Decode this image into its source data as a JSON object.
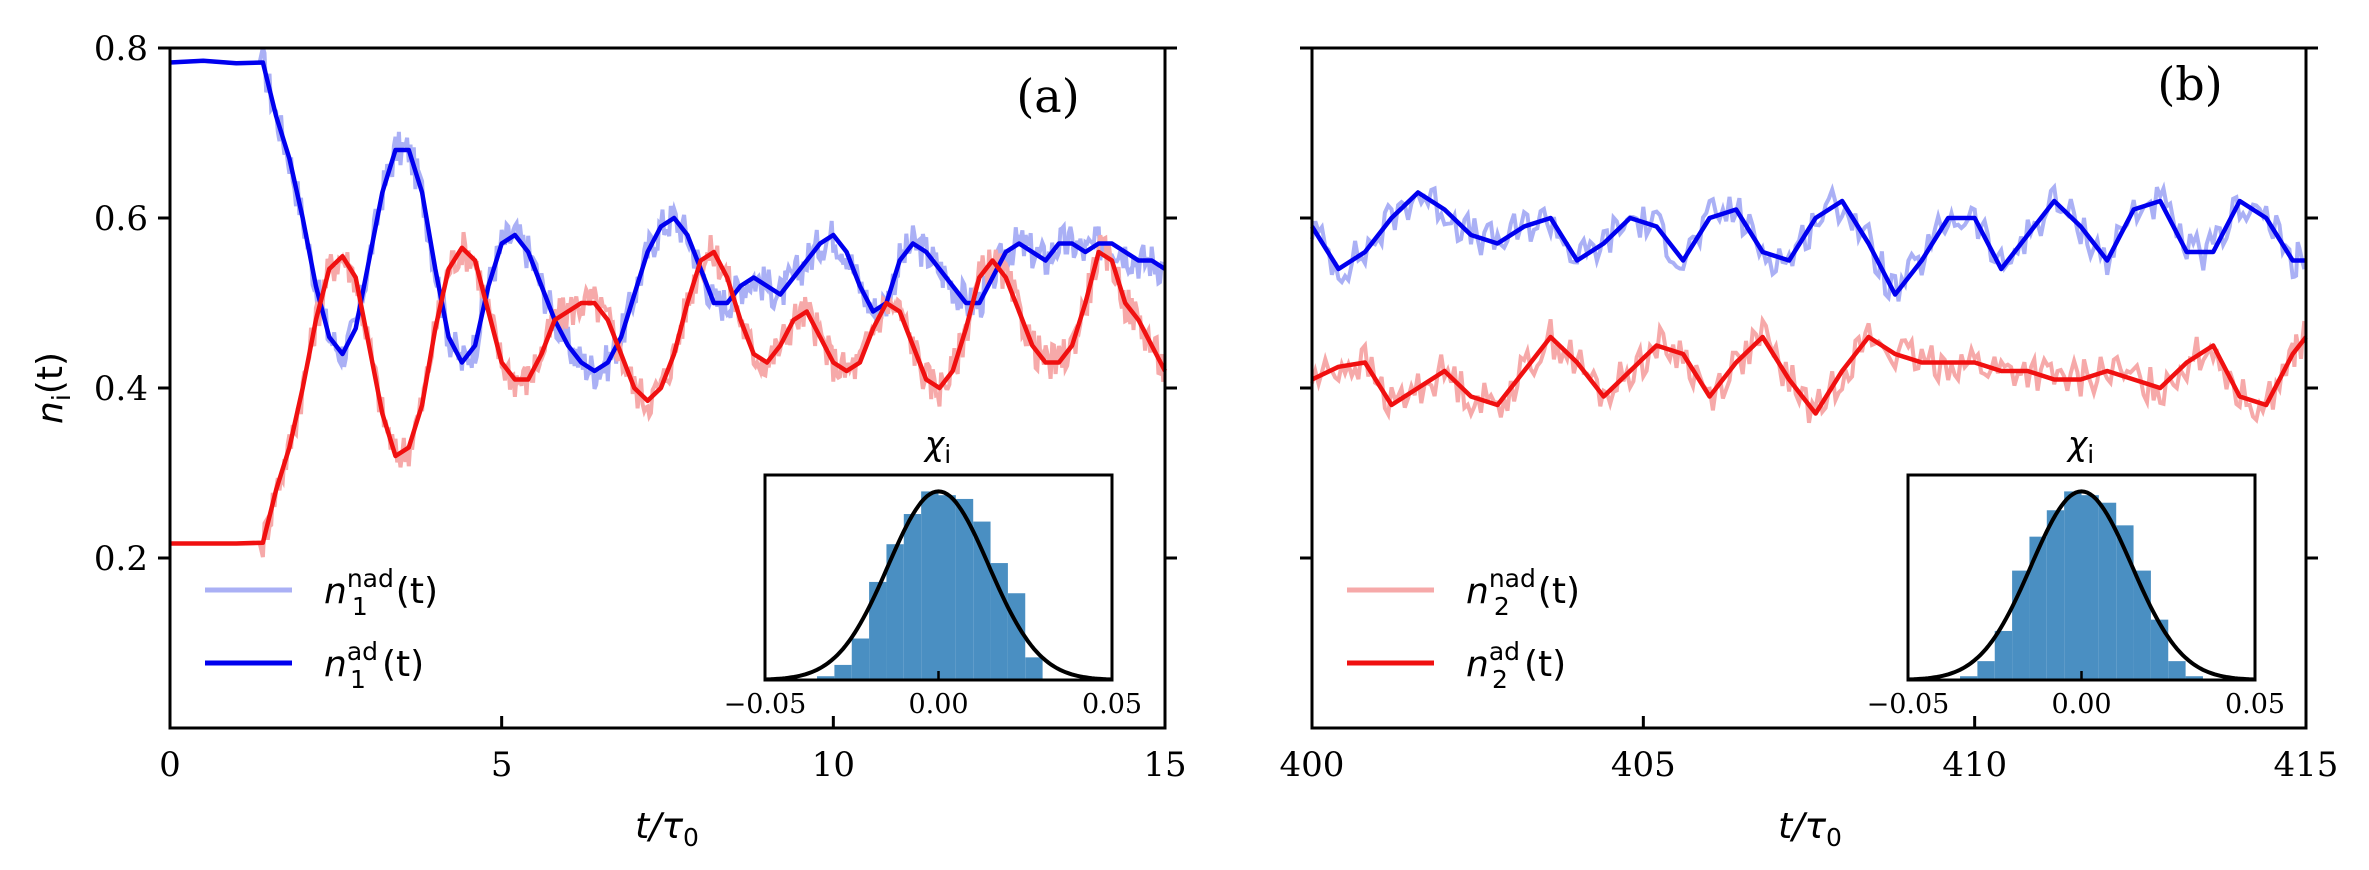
{
  "colors": {
    "blue_ad": "#0000ee",
    "blue_nad": "#aab0f5",
    "red_ad": "#f01010",
    "red_nad": "#f6a9a9",
    "hist": "#4a8fc2",
    "gauss": "#000000"
  },
  "chart_data": [
    {
      "type": "line",
      "panel_label": "(a)",
      "xlabel_main": "t/τ",
      "xlabel_sub": "0",
      "ylabel": "n",
      "ylabel_sub": "i",
      "ylabel_arg": "(t)",
      "xlim": [
        0,
        15
      ],
      "ylim": [
        0,
        0.8
      ],
      "xticks": [
        0,
        5,
        10,
        15
      ],
      "xtick_labels": [
        "0",
        "5",
        "10",
        "15"
      ],
      "yticks": [
        0.2,
        0.4,
        0.6,
        0.8
      ],
      "ytick_labels": [
        "0.2",
        "0.4",
        "0.6",
        "0.8"
      ],
      "legend": [
        {
          "base": "n",
          "sub": "1",
          "sup": "nad",
          "arg": "(t)",
          "color_key": "blue_nad"
        },
        {
          "base": "n",
          "sub": "1",
          "sup": "ad",
          "arg": "(t)",
          "color_key": "blue_ad"
        }
      ],
      "series": [
        {
          "color_key": "blue_ad",
          "x": [
            0,
            0.5,
            1.0,
            1.4,
            1.6,
            1.8,
            2.0,
            2.2,
            2.4,
            2.6,
            2.8,
            3.0,
            3.2,
            3.4,
            3.6,
            3.8,
            4.0,
            4.2,
            4.4,
            4.6,
            4.8,
            5.0,
            5.2,
            5.4,
            5.6,
            5.8,
            6.0,
            6.2,
            6.4,
            6.6,
            6.8,
            7.0,
            7.2,
            7.4,
            7.6,
            7.8,
            8.0,
            8.2,
            8.4,
            8.6,
            8.8,
            9.0,
            9.2,
            9.4,
            9.6,
            9.8,
            10.0,
            10.2,
            10.4,
            10.6,
            10.8,
            11.0,
            11.2,
            11.4,
            11.6,
            11.8,
            12.0,
            12.2,
            12.4,
            12.6,
            12.8,
            13.0,
            13.2,
            13.4,
            13.6,
            13.8,
            14.0,
            14.2,
            14.4,
            14.6,
            14.8,
            15.0
          ],
          "y": [
            0.783,
            0.785,
            0.782,
            0.783,
            0.72,
            0.67,
            0.6,
            0.52,
            0.46,
            0.44,
            0.47,
            0.55,
            0.63,
            0.68,
            0.68,
            0.63,
            0.54,
            0.46,
            0.43,
            0.45,
            0.52,
            0.57,
            0.58,
            0.56,
            0.52,
            0.48,
            0.45,
            0.43,
            0.42,
            0.43,
            0.46,
            0.51,
            0.56,
            0.59,
            0.6,
            0.58,
            0.54,
            0.5,
            0.5,
            0.52,
            0.53,
            0.52,
            0.51,
            0.53,
            0.55,
            0.57,
            0.58,
            0.56,
            0.52,
            0.49,
            0.5,
            0.55,
            0.57,
            0.56,
            0.54,
            0.52,
            0.5,
            0.5,
            0.53,
            0.56,
            0.57,
            0.56,
            0.55,
            0.57,
            0.57,
            0.56,
            0.57,
            0.57,
            0.56,
            0.55,
            0.55,
            0.54
          ]
        },
        {
          "color_key": "red_ad",
          "x": [
            0,
            0.5,
            1.0,
            1.4,
            1.6,
            1.8,
            2.0,
            2.2,
            2.4,
            2.6,
            2.8,
            3.0,
            3.2,
            3.4,
            3.6,
            3.8,
            4.0,
            4.2,
            4.4,
            4.6,
            4.8,
            5.0,
            5.2,
            5.4,
            5.6,
            5.8,
            6.0,
            6.2,
            6.4,
            6.6,
            6.8,
            7.0,
            7.2,
            7.4,
            7.6,
            7.8,
            8.0,
            8.2,
            8.4,
            8.6,
            8.8,
            9.0,
            9.2,
            9.4,
            9.6,
            9.8,
            10.0,
            10.2,
            10.4,
            10.6,
            10.8,
            11.0,
            11.2,
            11.4,
            11.6,
            11.8,
            12.0,
            12.2,
            12.4,
            12.6,
            12.8,
            13.0,
            13.2,
            13.4,
            13.6,
            13.8,
            14.0,
            14.2,
            14.4,
            14.6,
            14.8,
            15.0
          ],
          "y": [
            0.217,
            0.217,
            0.217,
            0.218,
            0.28,
            0.33,
            0.4,
            0.48,
            0.54,
            0.555,
            0.53,
            0.45,
            0.37,
            0.32,
            0.33,
            0.38,
            0.47,
            0.54,
            0.565,
            0.55,
            0.49,
            0.43,
            0.41,
            0.41,
            0.44,
            0.48,
            0.49,
            0.5,
            0.5,
            0.48,
            0.44,
            0.4,
            0.385,
            0.4,
            0.44,
            0.5,
            0.55,
            0.56,
            0.53,
            0.48,
            0.44,
            0.43,
            0.45,
            0.48,
            0.49,
            0.46,
            0.43,
            0.42,
            0.43,
            0.47,
            0.5,
            0.49,
            0.45,
            0.41,
            0.4,
            0.42,
            0.47,
            0.53,
            0.55,
            0.53,
            0.49,
            0.45,
            0.43,
            0.43,
            0.45,
            0.5,
            0.56,
            0.55,
            0.5,
            0.48,
            0.45,
            0.42
          ]
        }
      ],
      "inset": {
        "title": "χ",
        "title_sub": "i",
        "xlim": [
          -0.05,
          0.05
        ],
        "xticks": [
          -0.05,
          0.0,
          0.05
        ],
        "xtick_labels": [
          "−0.05",
          "0.00",
          "0.05"
        ],
        "hist_bins": [
          -0.05,
          -0.045,
          -0.04,
          -0.035,
          -0.03,
          -0.025,
          -0.02,
          -0.015,
          -0.01,
          -0.005,
          0.0,
          0.005,
          0.01,
          0.015,
          0.02,
          0.025,
          0.03,
          0.035,
          0.04,
          0.045,
          0.05
        ],
        "hist_counts": [
          0.0,
          0.0,
          0.0,
          0.02,
          0.08,
          0.22,
          0.52,
          0.72,
          0.88,
          1.0,
          0.98,
          0.96,
          0.84,
          0.62,
          0.46,
          0.12,
          0.0,
          0.0,
          0.0,
          0.0
        ],
        "gauss_sigma": 0.0145
      }
    },
    {
      "type": "line",
      "panel_label": "(b)",
      "xlabel_main": "t/τ",
      "xlabel_sub": "0",
      "xlim": [
        400,
        415
      ],
      "ylim": [
        0,
        0.8
      ],
      "xticks": [
        400,
        405,
        410,
        415
      ],
      "xtick_labels": [
        "400",
        "405",
        "410",
        "415"
      ],
      "yticks": [
        0.2,
        0.4,
        0.6,
        0.8
      ],
      "legend": [
        {
          "base": "n",
          "sub": "2",
          "sup": "nad",
          "arg": "(t)",
          "color_key": "red_nad"
        },
        {
          "base": "n",
          "sub": "2",
          "sup": "ad",
          "arg": "(t)",
          "color_key": "red_ad"
        }
      ],
      "series": [
        {
          "color_key": "blue_ad",
          "x": [
            400.0,
            400.4,
            400.8,
            401.2,
            401.6,
            402.0,
            402.4,
            402.8,
            403.2,
            403.6,
            404.0,
            404.4,
            404.8,
            405.2,
            405.6,
            406.0,
            406.4,
            406.8,
            407.2,
            407.6,
            408.0,
            408.4,
            408.8,
            409.2,
            409.6,
            410.0,
            410.4,
            410.8,
            411.2,
            411.6,
            412.0,
            412.4,
            412.8,
            413.2,
            413.6,
            414.0,
            414.4,
            414.8,
            415.0
          ],
          "y": [
            0.59,
            0.54,
            0.56,
            0.6,
            0.63,
            0.61,
            0.58,
            0.57,
            0.59,
            0.6,
            0.55,
            0.57,
            0.6,
            0.59,
            0.55,
            0.6,
            0.61,
            0.56,
            0.55,
            0.6,
            0.62,
            0.57,
            0.51,
            0.55,
            0.6,
            0.6,
            0.54,
            0.58,
            0.62,
            0.59,
            0.55,
            0.61,
            0.62,
            0.56,
            0.56,
            0.62,
            0.6,
            0.55,
            0.55
          ]
        },
        {
          "color_key": "red_ad",
          "x": [
            400.0,
            400.4,
            400.8,
            401.2,
            401.6,
            402.0,
            402.4,
            402.8,
            403.2,
            403.6,
            404.0,
            404.4,
            404.8,
            405.2,
            405.6,
            406.0,
            406.4,
            406.8,
            407.2,
            407.6,
            408.0,
            408.4,
            408.8,
            409.2,
            409.6,
            410.0,
            410.4,
            410.8,
            411.2,
            411.6,
            412.0,
            412.4,
            412.8,
            413.2,
            413.6,
            414.0,
            414.4,
            414.8,
            415.0
          ],
          "y": [
            0.41,
            0.425,
            0.43,
            0.38,
            0.4,
            0.42,
            0.39,
            0.38,
            0.42,
            0.46,
            0.43,
            0.39,
            0.42,
            0.45,
            0.44,
            0.39,
            0.43,
            0.46,
            0.41,
            0.37,
            0.42,
            0.46,
            0.44,
            0.43,
            0.43,
            0.43,
            0.42,
            0.42,
            0.41,
            0.41,
            0.42,
            0.41,
            0.4,
            0.43,
            0.45,
            0.39,
            0.38,
            0.44,
            0.46
          ]
        }
      ],
      "inset": {
        "title": "χ",
        "title_sub": "i",
        "xlim": [
          -0.05,
          0.05
        ],
        "xticks": [
          -0.05,
          0.0,
          0.05
        ],
        "xtick_labels": [
          "−0.05",
          "0.00",
          "0.05"
        ],
        "hist_bins": [
          -0.05,
          -0.045,
          -0.04,
          -0.035,
          -0.03,
          -0.025,
          -0.02,
          -0.015,
          -0.01,
          -0.005,
          0.0,
          0.005,
          0.01,
          0.015,
          0.02,
          0.025,
          0.03,
          0.035,
          0.04,
          0.045,
          0.05
        ],
        "hist_counts": [
          0.0,
          0.0,
          0.0,
          0.02,
          0.1,
          0.26,
          0.58,
          0.76,
          0.9,
          1.0,
          0.98,
          0.94,
          0.82,
          0.58,
          0.32,
          0.1,
          0.02,
          0.0,
          0.0,
          0.0
        ],
        "gauss_sigma": 0.0145
      }
    }
  ]
}
